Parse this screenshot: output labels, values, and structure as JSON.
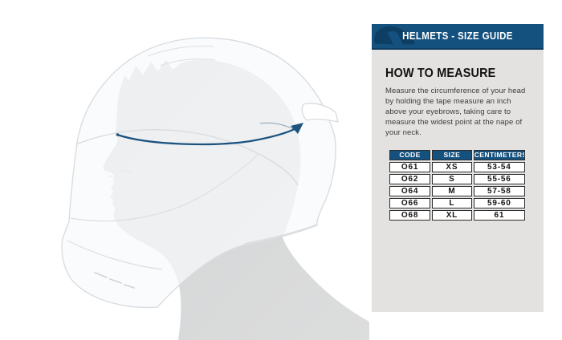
{
  "panel": {
    "header": {
      "title": "HELMETS - SIZE GUIDE",
      "logo_icon": "acerbis-logo",
      "bar_color": "#15517f"
    },
    "how_to_measure": {
      "title": "HOW TO MEASURE",
      "body": "Measure the circumference of your head by holding the tape measure an inch above your eyebrows, taking care to measure the widest point at the nape of your neck."
    },
    "size_table": {
      "columns": [
        "CODE",
        "SIZE",
        "CENTIMETERS"
      ],
      "rows": [
        [
          "O61",
          "XS",
          "53-54"
        ],
        [
          "O62",
          "S",
          "55-56"
        ],
        [
          "O64",
          "M",
          "57-58"
        ],
        [
          "O66",
          "L",
          "59-60"
        ],
        [
          "O68",
          "XL",
          "61"
        ]
      ]
    }
  },
  "illustration": {
    "subject": "side profile of a head wearing a transparent full-face helmet with a measuring line around the forehead",
    "measure_line_color": "#1c537f",
    "head_color": "#d6d7d7",
    "helmet_tint": "rgba(248,250,251,0.72)",
    "panel_background": "#e3e2e0"
  }
}
